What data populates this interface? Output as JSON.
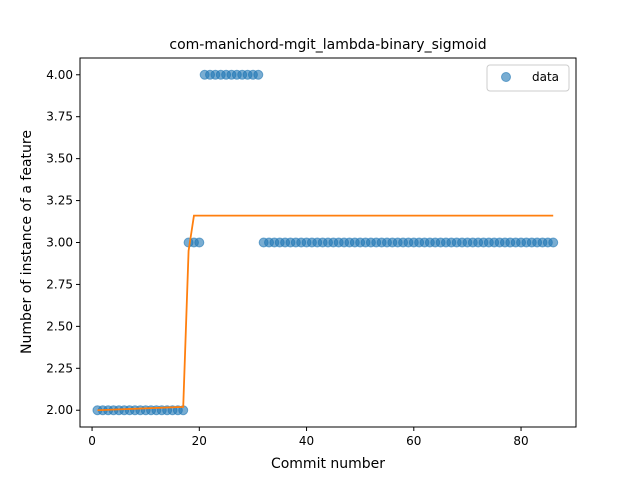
{
  "chart_data": {
    "type": "scatter",
    "title": "com-manichord-mgit_lambda-binary_sigmoid",
    "xlabel": "Commit number",
    "ylabel": "Number of instance of a feature",
    "xlim": [
      -2.25,
      90.25
    ],
    "ylim": [
      1.9,
      4.1
    ],
    "xticks": [
      0,
      20,
      40,
      60,
      80
    ],
    "xtick_labels": [
      "0",
      "20",
      "40",
      "60",
      "80"
    ],
    "yticks": [
      2.0,
      2.25,
      2.5,
      2.75,
      3.0,
      3.25,
      3.5,
      3.75,
      4.0
    ],
    "ytick_labels": [
      "2.00",
      "2.25",
      "2.50",
      "2.75",
      "3.00",
      "3.25",
      "3.50",
      "3.75",
      "4.00"
    ],
    "legend": {
      "position": "top-right",
      "entries": [
        "data"
      ]
    },
    "grid": false,
    "colors": {
      "data": "#1f77b4",
      "fit": "#ff7f0e"
    },
    "series": [
      {
        "name": "data",
        "kind": "scatter",
        "x": [
          1,
          2,
          3,
          4,
          5,
          6,
          7,
          8,
          9,
          10,
          11,
          12,
          13,
          14,
          15,
          16,
          17,
          18,
          19,
          20,
          21,
          22,
          23,
          24,
          25,
          26,
          27,
          28,
          29,
          30,
          31,
          32,
          33,
          34,
          35,
          36,
          37,
          38,
          39,
          40,
          41,
          42,
          43,
          44,
          45,
          46,
          47,
          48,
          49,
          50,
          51,
          52,
          53,
          54,
          55,
          56,
          57,
          58,
          59,
          60,
          61,
          62,
          63,
          64,
          65,
          66,
          67,
          68,
          69,
          70,
          71,
          72,
          73,
          74,
          75,
          76,
          77,
          78,
          79,
          80,
          81,
          82,
          83,
          84,
          85,
          86
        ],
        "y": [
          2,
          2,
          2,
          2,
          2,
          2,
          2,
          2,
          2,
          2,
          2,
          2,
          2,
          2,
          2,
          2,
          2,
          3,
          3,
          3,
          4,
          4,
          4,
          4,
          4,
          4,
          4,
          4,
          4,
          4,
          4,
          3,
          3,
          3,
          3,
          3,
          3,
          3,
          3,
          3,
          3,
          3,
          3,
          3,
          3,
          3,
          3,
          3,
          3,
          3,
          3,
          3,
          3,
          3,
          3,
          3,
          3,
          3,
          3,
          3,
          3,
          3,
          3,
          3,
          3,
          3,
          3,
          3,
          3,
          3,
          3,
          3,
          3,
          3,
          3,
          3,
          3,
          3,
          3,
          3,
          3,
          3,
          3,
          3,
          3,
          3
        ]
      },
      {
        "kind": "line",
        "x": [
          1,
          17,
          18,
          19,
          86
        ],
        "y": [
          2.0,
          2.02,
          2.95,
          3.16,
          3.16
        ]
      }
    ]
  }
}
